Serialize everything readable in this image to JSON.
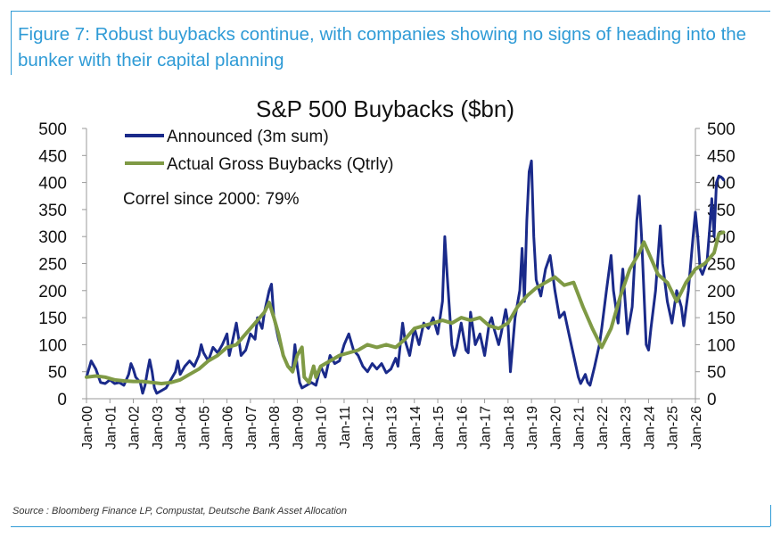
{
  "figure": {
    "title": "Figure 7: Robust buybacks continue, with companies showing no signs of heading into the bunker with their capital planning",
    "source": "Source : Bloomberg Finance LP, Compustat, Deutsche Bank Asset Allocation"
  },
  "colors": {
    "accent": "#2f9bd6",
    "announced": "#1a2a8a",
    "actual": "#7f9a45"
  },
  "chart_data": {
    "type": "line",
    "title": "S&P 500 Buybacks ($bn)",
    "annotation": "Correl since 2000: 79%",
    "xlabel": "",
    "ylabel": "",
    "ylim": [
      0,
      500
    ],
    "yticks": [
      "0",
      "50",
      "100",
      "150",
      "200",
      "250",
      "300",
      "350",
      "400",
      "450",
      "500"
    ],
    "xticks": [
      "Jan-00",
      "Jan-01",
      "Jan-02",
      "Jan-03",
      "Jan-04",
      "Jan-05",
      "Jan-06",
      "Jan-07",
      "Jan-08",
      "Jan-09",
      "Jan-10",
      "Jan-11",
      "Jan-12",
      "Jan-13",
      "Jan-14",
      "Jan-15",
      "Jan-16",
      "Jan-17",
      "Jan-18",
      "Jan-19",
      "Jan-20",
      "Jan-21",
      "Jan-22",
      "Jan-23",
      "Jan-24",
      "Jan-25",
      "Jan-26"
    ],
    "legend_position": "top-left",
    "series": [
      {
        "name": "Announced (3m sum)",
        "points": [
          [
            0,
            40
          ],
          [
            0.2,
            70
          ],
          [
            0.4,
            55
          ],
          [
            0.6,
            30
          ],
          [
            0.8,
            28
          ],
          [
            1.0,
            35
          ],
          [
            1.2,
            28
          ],
          [
            1.4,
            30
          ],
          [
            1.6,
            25
          ],
          [
            1.8,
            45
          ],
          [
            1.9,
            65
          ],
          [
            2.0,
            55
          ],
          [
            2.1,
            40
          ],
          [
            2.3,
            30
          ],
          [
            2.4,
            10
          ],
          [
            2.5,
            25
          ],
          [
            2.6,
            50
          ],
          [
            2.7,
            72
          ],
          [
            2.8,
            50
          ],
          [
            2.9,
            20
          ],
          [
            3.0,
            10
          ],
          [
            3.2,
            15
          ],
          [
            3.4,
            20
          ],
          [
            3.6,
            35
          ],
          [
            3.8,
            50
          ],
          [
            3.9,
            70
          ],
          [
            4.0,
            45
          ],
          [
            4.2,
            60
          ],
          [
            4.4,
            70
          ],
          [
            4.6,
            60
          ],
          [
            4.8,
            80
          ],
          [
            4.9,
            100
          ],
          [
            5.0,
            85
          ],
          [
            5.2,
            70
          ],
          [
            5.4,
            95
          ],
          [
            5.6,
            85
          ],
          [
            5.8,
            100
          ],
          [
            6.0,
            120
          ],
          [
            6.1,
            80
          ],
          [
            6.2,
            100
          ],
          [
            6.4,
            140
          ],
          [
            6.5,
            110
          ],
          [
            6.6,
            80
          ],
          [
            6.8,
            90
          ],
          [
            7.0,
            120
          ],
          [
            7.2,
            110
          ],
          [
            7.3,
            150
          ],
          [
            7.5,
            130
          ],
          [
            7.6,
            160
          ],
          [
            7.8,
            200
          ],
          [
            7.9,
            212
          ],
          [
            8.0,
            150
          ],
          [
            8.2,
            110
          ],
          [
            8.4,
            80
          ],
          [
            8.6,
            60
          ],
          [
            8.8,
            55
          ],
          [
            8.9,
            100
          ],
          [
            9.0,
            60
          ],
          [
            9.1,
            30
          ],
          [
            9.2,
            20
          ],
          [
            9.4,
            25
          ],
          [
            9.6,
            30
          ],
          [
            9.8,
            25
          ],
          [
            10.0,
            60
          ],
          [
            10.2,
            40
          ],
          [
            10.4,
            80
          ],
          [
            10.6,
            65
          ],
          [
            10.8,
            70
          ],
          [
            11.0,
            100
          ],
          [
            11.2,
            120
          ],
          [
            11.4,
            90
          ],
          [
            11.6,
            80
          ],
          [
            11.8,
            60
          ],
          [
            12.0,
            50
          ],
          [
            12.2,
            65
          ],
          [
            12.4,
            55
          ],
          [
            12.6,
            65
          ],
          [
            12.8,
            48
          ],
          [
            13.0,
            55
          ],
          [
            13.2,
            75
          ],
          [
            13.3,
            60
          ],
          [
            13.4,
            100
          ],
          [
            13.5,
            140
          ],
          [
            13.6,
            108
          ],
          [
            13.8,
            80
          ],
          [
            14.0,
            130
          ],
          [
            14.2,
            100
          ],
          [
            14.4,
            140
          ],
          [
            14.6,
            130
          ],
          [
            14.8,
            150
          ],
          [
            15.0,
            120
          ],
          [
            15.2,
            180
          ],
          [
            15.3,
            300
          ],
          [
            15.4,
            230
          ],
          [
            15.6,
            100
          ],
          [
            15.7,
            80
          ],
          [
            15.8,
            95
          ],
          [
            16.0,
            140
          ],
          [
            16.2,
            90
          ],
          [
            16.3,
            85
          ],
          [
            16.4,
            160
          ],
          [
            16.6,
            100
          ],
          [
            16.8,
            120
          ],
          [
            17.0,
            80
          ],
          [
            17.2,
            140
          ],
          [
            17.3,
            150
          ],
          [
            17.4,
            130
          ],
          [
            17.6,
            100
          ],
          [
            17.7,
            120
          ],
          [
            17.9,
            165
          ],
          [
            18.0,
            140
          ],
          [
            18.1,
            50
          ],
          [
            18.3,
            150
          ],
          [
            18.5,
            200
          ],
          [
            18.6,
            278
          ],
          [
            18.7,
            180
          ],
          [
            18.8,
            330
          ],
          [
            18.9,
            420
          ],
          [
            19.0,
            440
          ],
          [
            19.1,
            300
          ],
          [
            19.2,
            220
          ],
          [
            19.4,
            190
          ],
          [
            19.6,
            240
          ],
          [
            19.8,
            265
          ],
          [
            20.0,
            200
          ],
          [
            20.2,
            150
          ],
          [
            20.4,
            160
          ],
          [
            20.6,
            120
          ],
          [
            20.8,
            80
          ],
          [
            21.0,
            40
          ],
          [
            21.1,
            28
          ],
          [
            21.3,
            45
          ],
          [
            21.4,
            30
          ],
          [
            21.5,
            25
          ],
          [
            21.7,
            60
          ],
          [
            21.9,
            100
          ],
          [
            22.0,
            130
          ],
          [
            22.2,
            200
          ],
          [
            22.4,
            265
          ],
          [
            22.5,
            200
          ],
          [
            22.7,
            140
          ],
          [
            22.9,
            240
          ],
          [
            23.0,
            180
          ],
          [
            23.1,
            120
          ],
          [
            23.3,
            170
          ],
          [
            23.5,
            330
          ],
          [
            23.6,
            375
          ],
          [
            23.7,
            300
          ],
          [
            23.8,
            200
          ],
          [
            23.9,
            100
          ],
          [
            24.0,
            90
          ],
          [
            24.1,
            130
          ],
          [
            24.3,
            200
          ],
          [
            24.5,
            320
          ],
          [
            24.6,
            250
          ],
          [
            24.8,
            180
          ],
          [
            25.0,
            140
          ],
          [
            25.2,
            200
          ],
          [
            25.4,
            170
          ],
          [
            25.5,
            135
          ],
          [
            25.7,
            200
          ],
          [
            25.9,
            300
          ],
          [
            26.0,
            345
          ],
          [
            26.1,
            300
          ],
          [
            26.2,
            240
          ],
          [
            26.3,
            230
          ],
          [
            26.5,
            255
          ],
          [
            26.6,
            310
          ],
          [
            26.7,
            370
          ],
          [
            26.8,
            300
          ],
          [
            26.9,
            400
          ],
          [
            27.0,
            412
          ],
          [
            27.1,
            410
          ],
          [
            27.2,
            405
          ]
        ]
      },
      {
        "name": "Actual Gross Buybacks (Qtrly)",
        "points": [
          [
            0,
            40
          ],
          [
            0.4,
            42
          ],
          [
            0.8,
            40
          ],
          [
            1.2,
            35
          ],
          [
            1.6,
            33
          ],
          [
            2.0,
            32
          ],
          [
            2.4,
            32
          ],
          [
            2.8,
            30
          ],
          [
            3.2,
            28
          ],
          [
            3.6,
            30
          ],
          [
            4.0,
            35
          ],
          [
            4.4,
            45
          ],
          [
            4.8,
            55
          ],
          [
            5.2,
            70
          ],
          [
            5.6,
            80
          ],
          [
            6.0,
            95
          ],
          [
            6.4,
            100
          ],
          [
            6.8,
            120
          ],
          [
            7.2,
            140
          ],
          [
            7.6,
            160
          ],
          [
            7.8,
            178
          ],
          [
            8.0,
            150
          ],
          [
            8.2,
            120
          ],
          [
            8.4,
            80
          ],
          [
            8.6,
            60
          ],
          [
            8.8,
            50
          ],
          [
            9.0,
            80
          ],
          [
            9.2,
            95
          ],
          [
            9.3,
            40
          ],
          [
            9.5,
            30
          ],
          [
            9.7,
            60
          ],
          [
            9.8,
            40
          ],
          [
            10.0,
            60
          ],
          [
            10.4,
            70
          ],
          [
            10.8,
            80
          ],
          [
            11.2,
            85
          ],
          [
            11.6,
            90
          ],
          [
            12.0,
            100
          ],
          [
            12.4,
            95
          ],
          [
            12.8,
            100
          ],
          [
            13.2,
            95
          ],
          [
            13.6,
            110
          ],
          [
            14.0,
            130
          ],
          [
            14.4,
            135
          ],
          [
            14.8,
            140
          ],
          [
            15.2,
            145
          ],
          [
            15.6,
            140
          ],
          [
            16.0,
            150
          ],
          [
            16.4,
            145
          ],
          [
            16.8,
            150
          ],
          [
            17.2,
            135
          ],
          [
            17.6,
            130
          ],
          [
            18.0,
            140
          ],
          [
            18.4,
            170
          ],
          [
            18.8,
            190
          ],
          [
            19.2,
            205
          ],
          [
            19.6,
            215
          ],
          [
            20.0,
            225
          ],
          [
            20.4,
            210
          ],
          [
            20.8,
            215
          ],
          [
            21.2,
            170
          ],
          [
            21.6,
            130
          ],
          [
            22.0,
            95
          ],
          [
            22.4,
            130
          ],
          [
            22.8,
            190
          ],
          [
            23.2,
            240
          ],
          [
            23.6,
            270
          ],
          [
            23.8,
            290
          ],
          [
            24.0,
            270
          ],
          [
            24.4,
            230
          ],
          [
            24.8,
            215
          ],
          [
            25.2,
            180
          ],
          [
            25.6,
            215
          ],
          [
            26.0,
            240
          ],
          [
            26.4,
            250
          ],
          [
            26.8,
            270
          ],
          [
            27.0,
            305
          ],
          [
            27.2,
            308
          ]
        ]
      }
    ]
  }
}
